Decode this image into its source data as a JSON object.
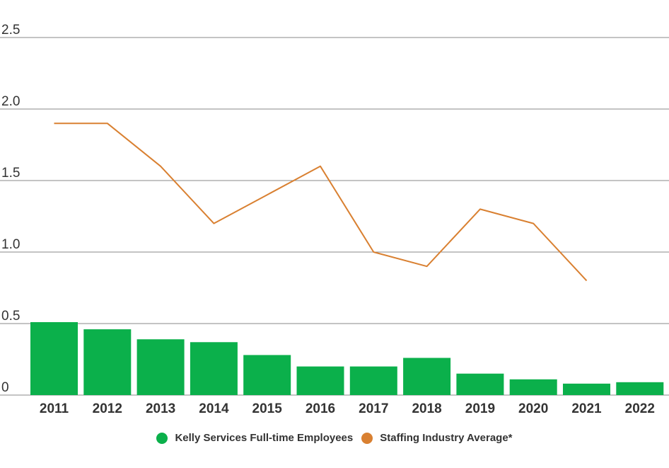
{
  "colors": {
    "bar": "#0bb04b",
    "line": "#d98031",
    "grid": "#8a8a8a",
    "text": "#333333"
  },
  "chart_data": {
    "type": "bar+line",
    "categories": [
      "2011",
      "2012",
      "2013",
      "2014",
      "2015",
      "2016",
      "2017",
      "2018",
      "2019",
      "2020",
      "2021",
      "2022"
    ],
    "ylim": [
      0,
      2.5
    ],
    "yticks": [
      {
        "value": 0,
        "label": "0"
      },
      {
        "value": 0.5,
        "label": "0.5"
      },
      {
        "value": 1.0,
        "label": "1.0"
      },
      {
        "value": 1.5,
        "label": "1.5"
      },
      {
        "value": 2.0,
        "label": "2.0"
      },
      {
        "value": 2.5,
        "label": "2.5"
      }
    ],
    "grid": true,
    "legend_position": "bottom-center",
    "series": [
      {
        "name": "Kelly Services Full-time Employees",
        "kind": "bar",
        "color": "#0bb04b",
        "values": [
          0.51,
          0.46,
          0.39,
          0.37,
          0.28,
          0.2,
          0.2,
          0.26,
          0.15,
          0.11,
          0.08,
          0.09
        ]
      },
      {
        "name": "Staffing Industry Average*",
        "kind": "line",
        "color": "#d98031",
        "values": [
          1.9,
          1.9,
          1.6,
          1.2,
          1.4,
          1.6,
          1.0,
          0.9,
          1.3,
          1.2,
          0.8,
          null
        ]
      }
    ]
  }
}
